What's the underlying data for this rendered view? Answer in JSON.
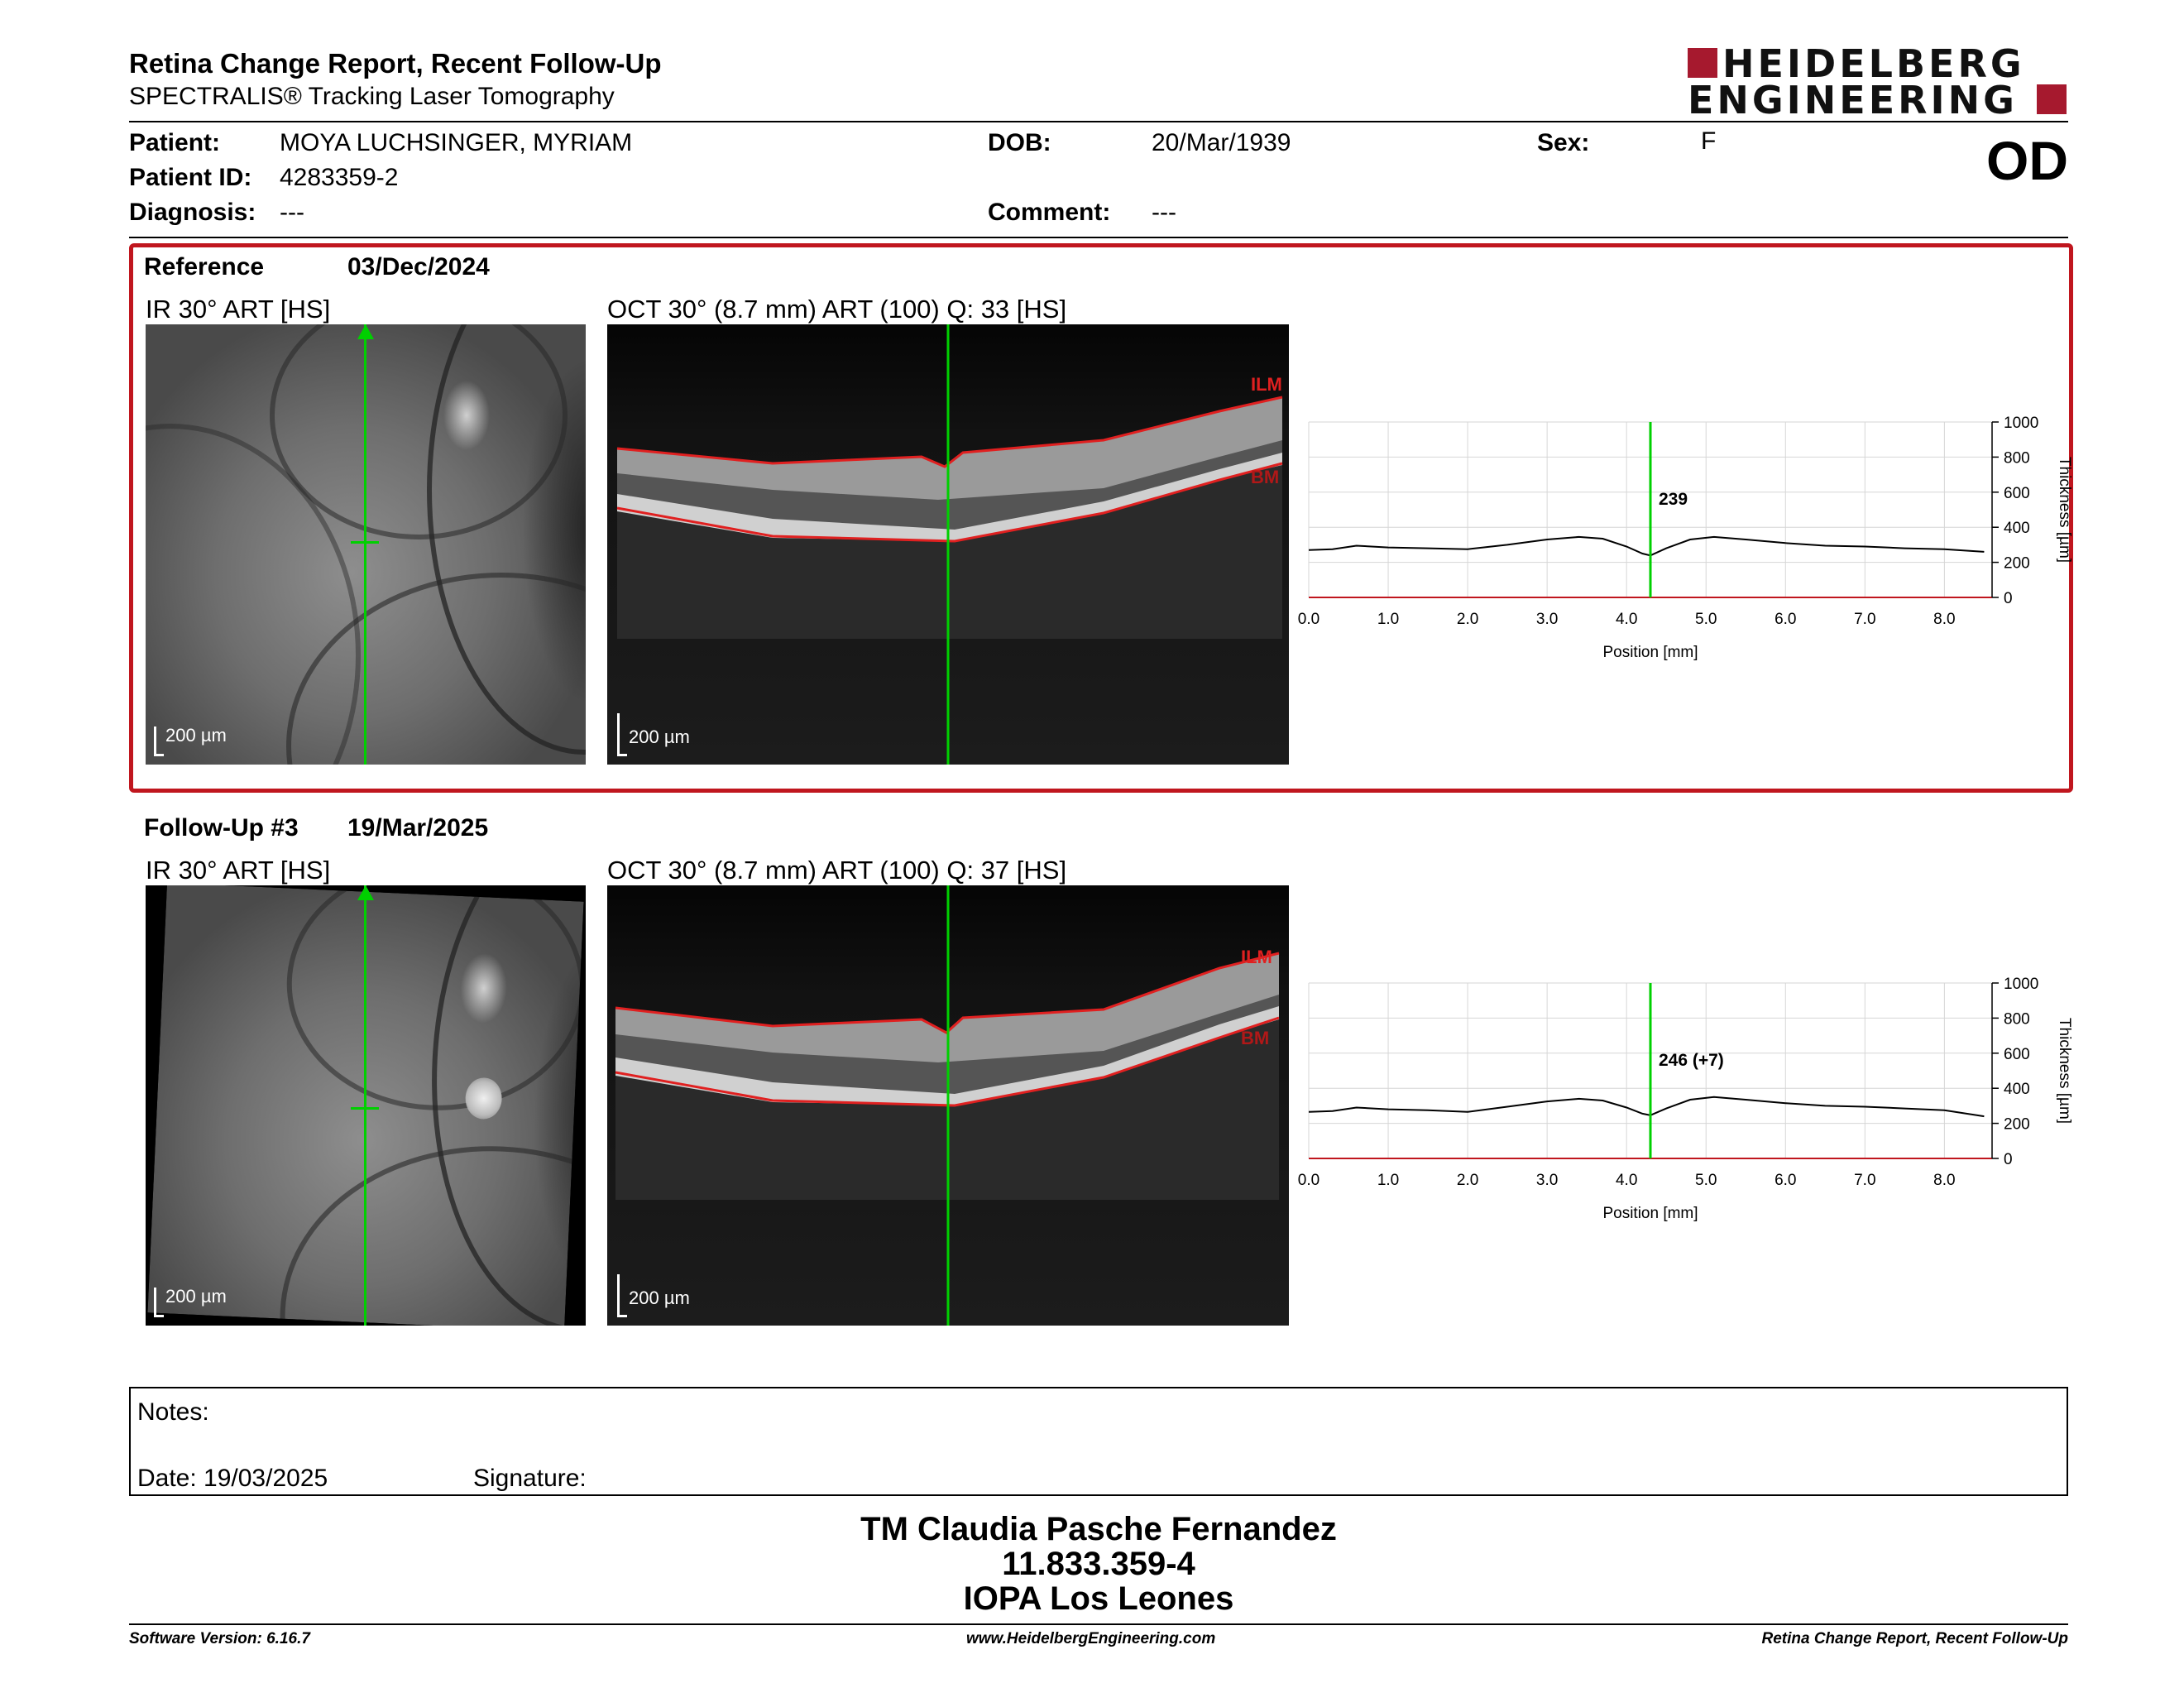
{
  "header": {
    "title": "Retina Change Report, Recent Follow-Up",
    "subtitle": "SPECTRALIS® Tracking Laser Tomography",
    "logo_line1": "HEIDELBERG",
    "logo_line2": "ENGINEERING",
    "eye": "OD"
  },
  "patient": {
    "patient_label": "Patient:",
    "patient_value": "MOYA LUCHSINGER, MYRIAM",
    "id_label": "Patient ID:",
    "id_value": "4283359-2",
    "diagnosis_label": "Diagnosis:",
    "diagnosis_value": "---",
    "dob_label": "DOB:",
    "dob_value": "20/Mar/1939",
    "comment_label": "Comment:",
    "comment_value": "---",
    "sex_label": "Sex:",
    "sex_value": "F"
  },
  "reference": {
    "label": "Reference",
    "date": "03/Dec/2024",
    "ir_title": "IR 30° ART [HS]",
    "oct_title": "OCT 30° (8.7 mm) ART (100) Q: 33 [HS]",
    "scale": "200 µm",
    "ilm": "ILM",
    "bm": "BM"
  },
  "followup": {
    "label": "Follow-Up #3",
    "date": "19/Mar/2025",
    "ir_title": "IR 30° ART [HS]",
    "oct_title": "OCT 30° (8.7 mm) ART (100) Q: 37 [HS]",
    "scale": "200 µm",
    "ilm": "ILM",
    "bm": "BM"
  },
  "chart_data": [
    {
      "type": "line",
      "xlabel": "Position [mm]",
      "ylabel": "Thickness [µm]",
      "xlim": [
        0,
        8.6
      ],
      "ylim": [
        0,
        1000
      ],
      "xticks": [
        "0.0",
        "1.0",
        "2.0",
        "3.0",
        "4.0",
        "5.0",
        "6.0",
        "7.0",
        "8.0"
      ],
      "yticks": [
        "0",
        "200",
        "400",
        "600",
        "800",
        "1000"
      ],
      "grid": true,
      "marker_x": 4.3,
      "marker_label": "239",
      "x": [
        0.0,
        0.3,
        0.6,
        1.0,
        1.5,
        2.0,
        2.5,
        3.0,
        3.4,
        3.7,
        4.0,
        4.2,
        4.3,
        4.5,
        4.8,
        5.1,
        5.5,
        6.0,
        6.5,
        7.0,
        7.5,
        8.0,
        8.5
      ],
      "y": [
        270,
        275,
        295,
        285,
        280,
        275,
        300,
        330,
        345,
        335,
        290,
        250,
        239,
        280,
        330,
        345,
        330,
        310,
        295,
        290,
        280,
        275,
        260
      ]
    },
    {
      "type": "line",
      "xlabel": "Position [mm]",
      "ylabel": "Thickness [µm]",
      "xlim": [
        0,
        8.6
      ],
      "ylim": [
        0,
        1000
      ],
      "xticks": [
        "0.0",
        "1.0",
        "2.0",
        "3.0",
        "4.0",
        "5.0",
        "6.0",
        "7.0",
        "8.0"
      ],
      "yticks": [
        "0",
        "200",
        "400",
        "600",
        "800",
        "1000"
      ],
      "grid": true,
      "marker_x": 4.3,
      "marker_label": "246 (+7)",
      "x": [
        0.0,
        0.3,
        0.6,
        1.0,
        1.5,
        2.0,
        2.5,
        3.0,
        3.4,
        3.7,
        4.0,
        4.2,
        4.3,
        4.5,
        4.8,
        5.1,
        5.5,
        6.0,
        6.5,
        7.0,
        7.5,
        8.0,
        8.5
      ],
      "y": [
        265,
        270,
        290,
        280,
        275,
        265,
        295,
        325,
        340,
        330,
        290,
        255,
        246,
        285,
        335,
        350,
        335,
        315,
        300,
        295,
        285,
        275,
        240
      ]
    }
  ],
  "notes": {
    "notes_label": "Notes:",
    "date_text": "Date: 19/03/2025",
    "signature_label": "Signature:"
  },
  "stamp": {
    "line1": "TM Claudia Pasche Fernandez",
    "line2": "11.833.359-4",
    "line3": "IOPA Los Leones"
  },
  "footer": {
    "software": "Software Version: 6.16.7",
    "website": "www.HeidelbergEngineering.com",
    "report": "Retina Change Report, Recent Follow-Up"
  },
  "colors": {
    "accent_red": "#c0161e",
    "logo_red": "#a6192e",
    "marker_green": "#00d000"
  }
}
